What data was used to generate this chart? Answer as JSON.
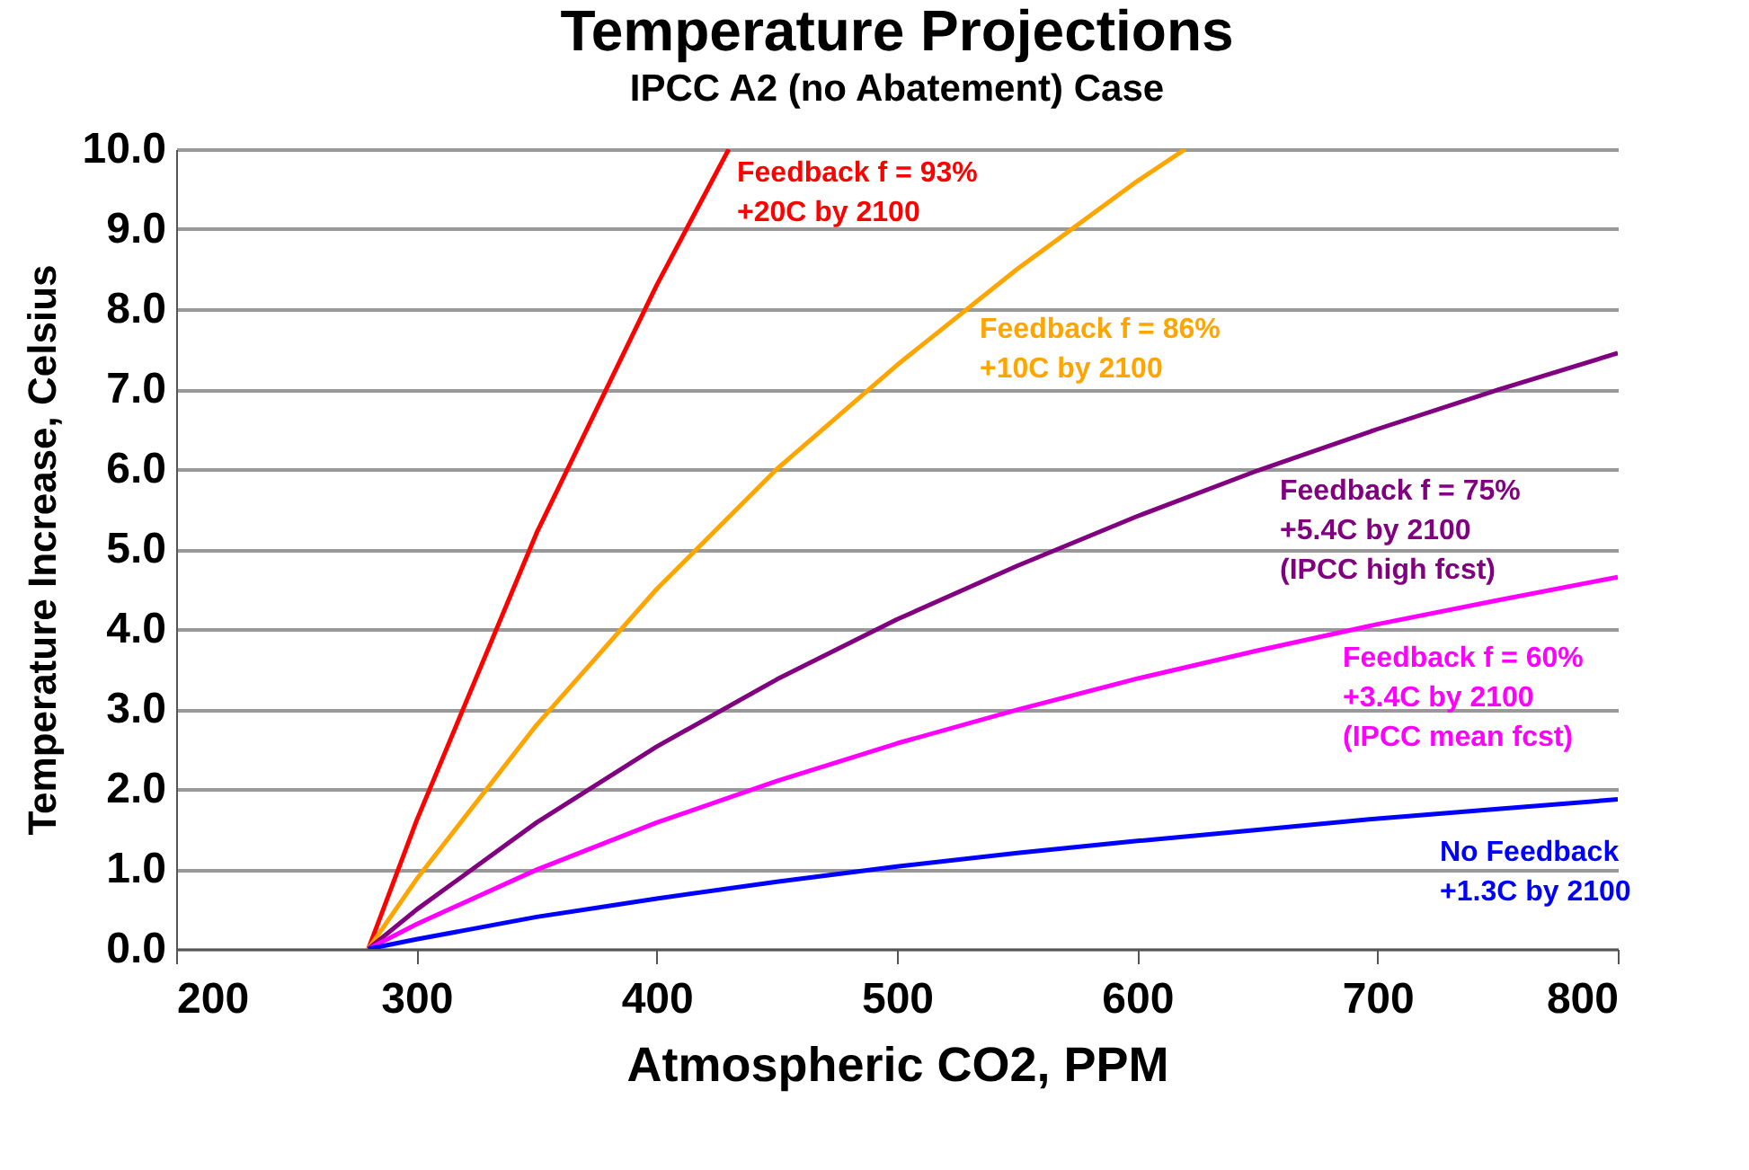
{
  "chart_data": {
    "type": "line",
    "title": "Temperature Projections",
    "subtitle": "IPCC A2 (no Abatement) Case",
    "xlabel": "Atmospheric CO2, PPM",
    "ylabel": "Temperature Increase, Celsius",
    "series": [
      {
        "color": "#ff0000",
        "x": [
          280,
          300,
          350,
          400,
          430
        ],
        "values": [
          0,
          1.6,
          5.2,
          8.3,
          10.0
        ]
      },
      {
        "color": "#ffa500",
        "x": [
          280,
          300,
          350,
          400,
          450,
          500,
          550,
          600,
          620
        ],
        "values": [
          0,
          0.87,
          2.8,
          4.5,
          6.0,
          7.3,
          8.5,
          9.6,
          10.0
        ]
      },
      {
        "color": "#800080",
        "x": [
          280,
          300,
          350,
          400,
          450,
          500,
          550,
          600,
          650,
          700,
          750,
          800
        ],
        "values": [
          0,
          0.49,
          1.58,
          2.53,
          3.37,
          4.12,
          4.79,
          5.41,
          5.98,
          6.5,
          6.99,
          7.45
        ]
      },
      {
        "color": "#ff00ff",
        "x": [
          280,
          300,
          350,
          400,
          450,
          500,
          550,
          600,
          650,
          700,
          750,
          800
        ],
        "values": [
          0,
          0.31,
          0.99,
          1.58,
          2.1,
          2.57,
          2.99,
          3.38,
          3.73,
          4.06,
          4.36,
          4.65
        ]
      },
      {
        "color": "#0000ff",
        "x": [
          280,
          300,
          350,
          400,
          450,
          500,
          550,
          600,
          650,
          700,
          750,
          800
        ],
        "values": [
          0,
          0.12,
          0.4,
          0.63,
          0.84,
          1.03,
          1.2,
          1.35,
          1.49,
          1.63,
          1.75,
          1.87
        ]
      }
    ],
    "annotations": [
      "Feedback f = 93%\n+20C by 2100",
      "Feedback f = 86%\n+10C by 2100",
      "Feedback f = 75%\n+5.4C by 2100\n(IPCC high fcst)",
      "Feedback f = 60%\n+3.4C by 2100\n(IPCC mean fcst)",
      "No Feedback\n+1.3C by 2100"
    ],
    "xlim": [
      200,
      800
    ],
    "xticks": [
      200,
      300,
      400,
      500,
      600,
      700,
      800
    ],
    "ylim": [
      0,
      10
    ],
    "yticks": [
      {
        "value": 0,
        "label": "0.0"
      },
      {
        "value": 1,
        "label": "1.0"
      },
      {
        "value": 2,
        "label": "2.0"
      },
      {
        "value": 3,
        "label": "3.0"
      },
      {
        "value": 4,
        "label": "4.0"
      },
      {
        "value": 5,
        "label": "5.0"
      },
      {
        "value": 6,
        "label": "6.0"
      },
      {
        "value": 7,
        "label": "7.0"
      },
      {
        "value": 8,
        "label": "8.0"
      },
      {
        "value": 9,
        "label": "9.0"
      },
      {
        "value": 10,
        "label": "10.0"
      }
    ],
    "grid": "y",
    "line_style": "solid"
  }
}
